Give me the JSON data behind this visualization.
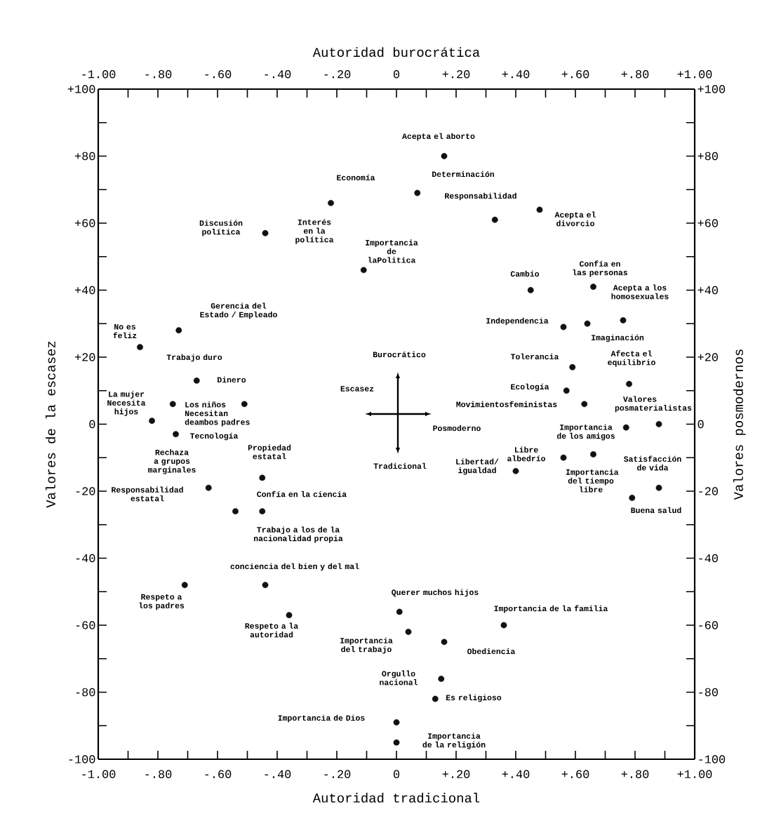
{
  "chart_data": {
    "type": "scatter",
    "xlabel": "Autoridad tradicional",
    "x2label": "Autoridad burocrática",
    "ylabel": "Valores de la escasez",
    "y2label": "Valores posmodernos",
    "xlim": [
      -1,
      1
    ],
    "ylim": [
      -100,
      100
    ],
    "x2lim": [
      -1,
      1
    ],
    "y2lim": [
      -100,
      100
    ],
    "xticks": [
      {
        "value": -1,
        "label": "-1.00"
      },
      {
        "value": -0.9,
        "label": null
      },
      {
        "value": -0.8,
        "label": "-.80"
      },
      {
        "value": -0.7,
        "label": null
      },
      {
        "value": -0.6,
        "label": "-.60"
      },
      {
        "value": -0.5,
        "label": null
      },
      {
        "value": -0.4,
        "label": "-.40"
      },
      {
        "value": -0.3,
        "label": null
      },
      {
        "value": -0.2,
        "label": "-.20"
      },
      {
        "value": -0.1,
        "label": null
      },
      0,
      {
        "value": 0.1,
        "label": null
      },
      {
        "value": 0.2,
        "label": "+.20"
      },
      {
        "value": 0.3,
        "label": null
      },
      {
        "value": 0.4,
        "label": "+.40"
      },
      {
        "value": 0.5,
        "label": null
      },
      {
        "value": 0.6,
        "label": "+.60"
      },
      {
        "value": 0.7,
        "label": null
      },
      {
        "value": 0.8,
        "label": "+.80"
      },
      {
        "value": 0.9,
        "label": null
      },
      {
        "value": 1,
        "label": "+1.00"
      }
    ],
    "x2ticks": [
      {
        "value": -1,
        "label": "-1.00"
      },
      {
        "value": -0.9,
        "label": null
      },
      {
        "value": -0.8,
        "label": "-.80"
      },
      {
        "value": -0.7,
        "label": null
      },
      {
        "value": -0.6,
        "label": "-.60"
      },
      {
        "value": -0.5,
        "label": null
      },
      {
        "value": -0.4,
        "label": "-.40"
      },
      {
        "value": -0.3,
        "label": null
      },
      {
        "value": -0.2,
        "label": "-.20"
      },
      {
        "value": -0.1,
        "label": null
      },
      0,
      {
        "value": 0.1,
        "label": null
      },
      {
        "value": 0.2,
        "label": "+.20"
      },
      {
        "value": 0.3,
        "label": null
      },
      {
        "value": 0.4,
        "label": "+.40"
      },
      {
        "value": 0.5,
        "label": null
      },
      {
        "value": 0.6,
        "label": "+.60"
      },
      {
        "value": 0.7,
        "label": null
      },
      {
        "value": 0.8,
        "label": "+.80"
      },
      {
        "value": 0.9,
        "label": null
      },
      {
        "value": 1,
        "label": "+1.00"
      }
    ],
    "yticks": [
      {
        "value": 100,
        "label": "+100"
      },
      {
        "value": 90,
        "label": null
      },
      {
        "value": 80,
        "label": "+80"
      },
      {
        "value": 70,
        "label": null
      },
      {
        "value": 60,
        "label": "+60"
      },
      {
        "value": 50,
        "label": null
      },
      {
        "value": 40,
        "label": "+40"
      },
      {
        "value": 30,
        "label": null
      },
      {
        "value": 20,
        "label": "+20"
      },
      {
        "value": 10,
        "label": null
      },
      0,
      {
        "value": -10,
        "label": null
      },
      -20,
      {
        "value": -30,
        "label": null
      },
      -40,
      {
        "value": -50,
        "label": null
      },
      -60,
      {
        "value": -70,
        "label": null
      },
      -80,
      {
        "value": -90,
        "label": null
      },
      -100
    ],
    "y2ticks": [
      {
        "value": 100,
        "label": "+100"
      },
      {
        "value": 90,
        "label": null
      },
      {
        "value": 80,
        "label": "+80"
      },
      {
        "value": 70,
        "label": null
      },
      {
        "value": 60,
        "label": "+60"
      },
      {
        "value": 50,
        "label": null
      },
      {
        "value": 40,
        "label": "+40"
      },
      {
        "value": 30,
        "label": null
      },
      {
        "value": 20,
        "label": "+20"
      },
      {
        "value": 10,
        "label": null
      },
      0,
      {
        "value": -10,
        "label": null
      },
      -20,
      {
        "value": -30,
        "label": null
      },
      -40,
      {
        "value": -50,
        "label": null
      },
      -60,
      {
        "value": -70,
        "label": null
      },
      -80,
      {
        "value": -90,
        "label": null
      },
      -100
    ],
    "marker": "circle",
    "color": "#111111",
    "x": [
      0.16,
      0.07,
      0.33,
      0.48,
      -0.22,
      -0.44,
      -0.11,
      0.45,
      0.66,
      0.56,
      0.64,
      0.76,
      0.59,
      0.57,
      0.63,
      0.78,
      0.88,
      0.77,
      0.66,
      0.56,
      0.4,
      0.88,
      0.79,
      -0.86,
      -0.73,
      -0.67,
      -0.75,
      -0.51,
      -0.82,
      -0.74,
      -0.45,
      -0.63,
      -0.54,
      -0.45,
      -0.71,
      -0.44,
      -0.36,
      0.01,
      0.04,
      0.16,
      0.36,
      0.15,
      0.13,
      0,
      0
    ],
    "values": [
      80,
      69,
      61,
      64,
      66,
      57,
      46,
      40,
      41,
      29,
      30,
      31,
      17,
      10,
      6,
      12,
      0,
      -1,
      -9,
      -10,
      -14,
      -19,
      -22,
      23,
      28,
      13,
      6,
      6,
      1,
      -3,
      -16,
      -19,
      -26,
      -26,
      -48,
      -48,
      -57,
      -56,
      -62,
      -65,
      -60,
      -76,
      -82,
      -89,
      -95
    ],
    "annotations": [
      "Acepta el aborto",
      "Determinación",
      "Responsabilidad",
      "Acepta el divorcio",
      "Economía",
      "Discusión política",
      "Interés en la política",
      "Importancia de laPolitica",
      "Cambio",
      "Confía en las personas",
      "Acepta a los homosexuales",
      "Independencia",
      "Imaginación",
      "Tolerancia",
      "Afecta el equilibrio",
      "Ecología",
      "Movimientosfeministas",
      "Valores posmaterialistas",
      "Importancia de los amigos",
      "Libre albedrío",
      "Importancia del tiempo libre",
      "Libertad/ igualdad",
      "Satisfacción de vida",
      "Buena salud",
      "No es feliz",
      "Gerencia del Estado / Empleado",
      "Trabajo duro",
      "Dinero",
      "La mujer Necesita hijos",
      "Los niños Necesitan deambos padres",
      "Tecnología",
      "Rechaza a grupos marginales",
      "Propiedad estatal",
      "Responsabilidad estatal",
      "Confía en la ciencia",
      "Trabajo a los de la nacionalidad propia",
      "Burocrático",
      "Escasez",
      "Posmoderno",
      "Tradicional",
      "conciencia del bien y del mal",
      "Respeto a los padres",
      "Respeto a la autoridad",
      "Querer muchos hijos",
      "Importancia de la familia",
      "Importancia del trabajo",
      "Obediencia",
      "Orgullo nacional",
      "Es religioso",
      "Importancia de Dios",
      "Importancia de la religión"
    ]
  }
}
